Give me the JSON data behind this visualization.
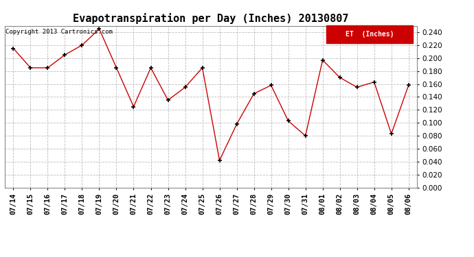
{
  "title": "Evapotranspiration per Day (Inches) 20130807",
  "copyright_text": "Copyright 2013 Cartronics.com",
  "legend_label": "ET  (Inches)",
  "legend_bg": "#cc0000",
  "legend_text_color": "#ffffff",
  "dates": [
    "07/14",
    "07/15",
    "07/16",
    "07/17",
    "07/18",
    "07/19",
    "07/20",
    "07/21",
    "07/22",
    "07/23",
    "07/24",
    "07/25",
    "07/26",
    "07/27",
    "07/28",
    "07/29",
    "07/30",
    "07/31",
    "08/01",
    "08/02",
    "08/03",
    "08/04",
    "08/05",
    "08/06"
  ],
  "values": [
    0.215,
    0.185,
    0.185,
    0.205,
    0.22,
    0.245,
    0.185,
    0.125,
    0.185,
    0.135,
    0.155,
    0.185,
    0.042,
    0.098,
    0.145,
    0.158,
    0.103,
    0.08,
    0.197,
    0.17,
    0.155,
    0.163,
    0.083,
    0.158
  ],
  "line_color": "#cc0000",
  "marker": "+",
  "marker_color": "#000000",
  "ylim": [
    0.0,
    0.25
  ],
  "yticks": [
    0.0,
    0.02,
    0.04,
    0.06,
    0.08,
    0.1,
    0.12,
    0.14,
    0.16,
    0.18,
    0.2,
    0.22,
    0.24
  ],
  "bg_color": "#ffffff",
  "grid_color": "#bbbbbb",
  "title_fontsize": 11,
  "tick_fontsize": 7.5,
  "copyright_fontsize": 6.5,
  "legend_fontsize": 7
}
